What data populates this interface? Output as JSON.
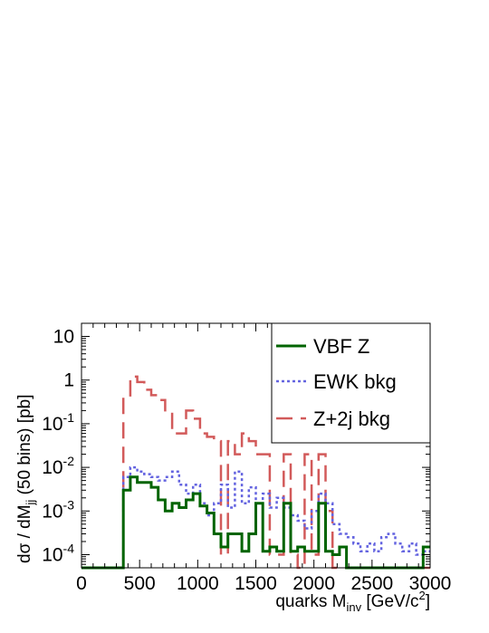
{
  "chart_data": {
    "type": "line",
    "xlabel": {
      "main": "quarks M",
      "sub": "inv",
      "rest": " [GeV/c",
      "sup": "2",
      "end": "]"
    },
    "ylabel": {
      "main": "dσ / dM",
      "sub": "jj",
      "rest": " (50 bins) [pb]"
    },
    "xlim": [
      0,
      3000
    ],
    "ylim": [
      5e-05,
      20
    ],
    "yscale": "log",
    "x_ticks": [
      0,
      500,
      1000,
      1500,
      2000,
      2500,
      3000
    ],
    "y_ticks": [
      {
        "value": 0.0001,
        "base": "10",
        "exp": "-4"
      },
      {
        "value": 0.001,
        "base": "10",
        "exp": "-3"
      },
      {
        "value": 0.01,
        "base": "10",
        "exp": "-2"
      },
      {
        "value": 0.1,
        "base": "10",
        "exp": "-1"
      },
      {
        "value": 1,
        "base": "1",
        "exp": ""
      },
      {
        "value": 10,
        "base": "10",
        "exp": ""
      }
    ],
    "bin_edges_step": 60,
    "legend_position": "top-right",
    "series": [
      {
        "name": "VBF Z",
        "color": "#006400",
        "style": "solid",
        "values": [
          0,
          0,
          0,
          0,
          0,
          0,
          0.003,
          0.006,
          0.0045,
          0.0045,
          0.0035,
          0.0018,
          0.001,
          0.0015,
          0.0012,
          0.0018,
          0.0025,
          0.0013,
          0.0009,
          0.0003,
          0.00015,
          0.0003,
          0.0003,
          0.00012,
          0.0003,
          0.0015,
          0.00012,
          0.00015,
          0.00012,
          0.0015,
          0.00012,
          0.00015,
          0.00012,
          0.00012,
          0.0015,
          0.00012,
          0.0001,
          0.00015,
          0,
          0,
          0,
          0,
          0,
          0,
          0,
          0,
          0,
          0,
          0,
          0.00015
        ]
      },
      {
        "name": "EWK bkg",
        "color": "#6464e0",
        "style": "dotted",
        "values": [
          0,
          0,
          0,
          0,
          0,
          0,
          0.006,
          0.01,
          0.008,
          0.007,
          0.006,
          0.005,
          0.006,
          0.008,
          0.004,
          0.0025,
          0.004,
          0.0015,
          0.0008,
          0.0015,
          0.004,
          0.0012,
          0.008,
          0.0015,
          0.0035,
          0.0015,
          0.0025,
          0.0012,
          0.002,
          0.0012,
          0.0008,
          0.0006,
          0.0004,
          0.001,
          0.0025,
          0.0015,
          0.0005,
          0.0003,
          0.00025,
          0.00018,
          0.00012,
          0.00018,
          0.00012,
          0.00025,
          0.0003,
          0.00018,
          0.00012,
          0.00018,
          0.0001,
          0.00012
        ]
      },
      {
        "name": "Z+2j bkg",
        "color": "#d25a5a",
        "style": "dashed",
        "values": [
          0,
          0,
          0,
          0,
          0,
          0,
          0.4,
          1.2,
          0.9,
          0.6,
          0.45,
          0.35,
          0.18,
          0.06,
          0.06,
          0.2,
          0.13,
          0.06,
          0.05,
          0.04,
          0.0001,
          0.04,
          0.02,
          0.06,
          0.04,
          0.02,
          0.02,
          0.0001,
          0.0001,
          0.02,
          0.0001,
          5e-05,
          0.02,
          0.0001,
          0.02,
          0.001,
          0,
          0,
          0,
          0,
          0,
          0,
          0,
          0,
          0,
          0,
          0,
          0,
          0,
          0
        ]
      }
    ]
  }
}
